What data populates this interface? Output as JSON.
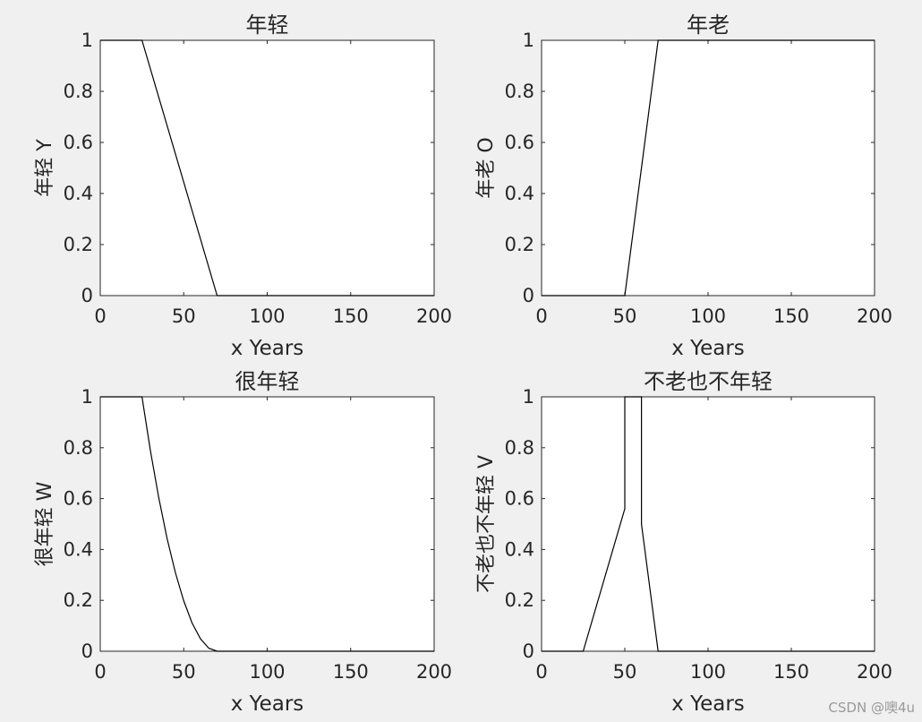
{
  "watermark": "CSDN @噢4u",
  "chart_data": [
    {
      "type": "line",
      "title": "年轻",
      "xlabel": "x Years",
      "ylabel": "年轻 Y",
      "xlim": [
        0,
        200
      ],
      "ylim": [
        0,
        1
      ],
      "xticks": [
        0,
        50,
        100,
        150,
        200
      ],
      "yticks": [
        0,
        0.2,
        0.4,
        0.6,
        0.8,
        1
      ],
      "grid": false,
      "series": [
        {
          "x": [
            0,
            25,
            70,
            200
          ],
          "y": [
            1,
            1,
            0,
            0
          ]
        }
      ]
    },
    {
      "type": "line",
      "title": "年老",
      "xlabel": "x Years",
      "ylabel": "年老 O",
      "xlim": [
        0,
        200
      ],
      "ylim": [
        0,
        1
      ],
      "xticks": [
        0,
        50,
        100,
        150,
        200
      ],
      "yticks": [
        0,
        0.2,
        0.4,
        0.6,
        0.8,
        1
      ],
      "grid": false,
      "series": [
        {
          "x": [
            0,
            50,
            70,
            200
          ],
          "y": [
            0,
            0,
            1,
            1
          ]
        }
      ]
    },
    {
      "type": "line",
      "title": "很年轻",
      "xlabel": "x Years",
      "ylabel": "很年轻 W",
      "xlim": [
        0,
        200
      ],
      "ylim": [
        0,
        1
      ],
      "xticks": [
        0,
        50,
        100,
        150,
        200
      ],
      "yticks": [
        0,
        0.2,
        0.4,
        0.6,
        0.8,
        1
      ],
      "grid": false,
      "series": [
        {
          "x": [
            0,
            25,
            30,
            35,
            40,
            45,
            50,
            55,
            60,
            65,
            70,
            200
          ],
          "y": [
            1,
            1,
            0.79,
            0.605,
            0.444,
            0.309,
            0.198,
            0.111,
            0.049,
            0.012,
            0,
            0
          ]
        }
      ]
    },
    {
      "type": "line",
      "title": "不老也不年轻",
      "xlabel": "x Years",
      "ylabel": "不老也不年轻 V",
      "xlim": [
        0,
        200
      ],
      "ylim": [
        0,
        1
      ],
      "xticks": [
        0,
        50,
        100,
        150,
        200
      ],
      "yticks": [
        0,
        0.2,
        0.4,
        0.6,
        0.8,
        1
      ],
      "grid": false,
      "series": [
        {
          "x": [
            0,
            25,
            50,
            50,
            60,
            60,
            70,
            200
          ],
          "y": [
            0,
            0,
            0.56,
            1,
            1,
            0.5,
            0,
            0
          ]
        }
      ]
    }
  ]
}
